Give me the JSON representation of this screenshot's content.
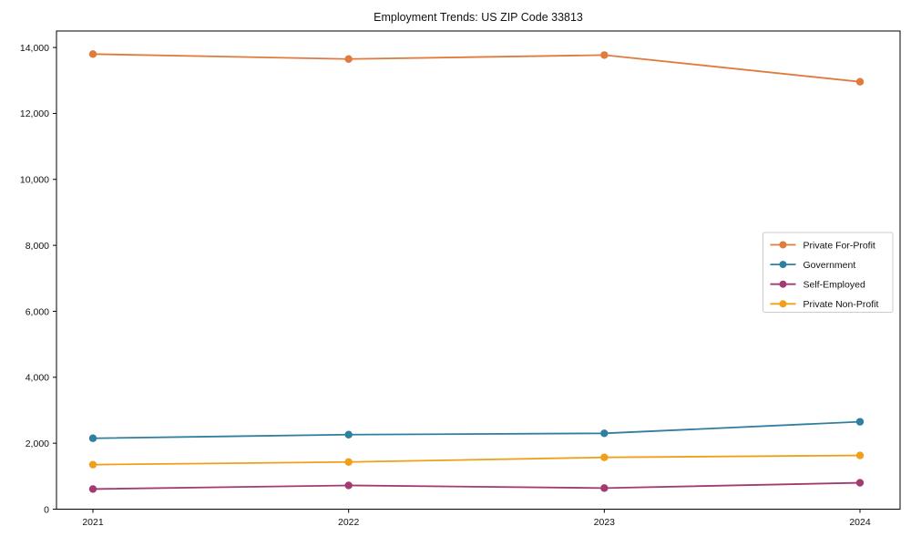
{
  "figure": {
    "title": "Employment Trends: US ZIP Code 33813"
  },
  "chart_data": {
    "type": "line",
    "title": "Employment Trends: US ZIP Code 33813",
    "x": [
      "2021",
      "2022",
      "2023",
      "2024"
    ],
    "series": [
      {
        "name": "Private For-Profit",
        "color": "#E07B3E",
        "values": [
          13800,
          13650,
          13770,
          12960
        ]
      },
      {
        "name": "Government",
        "color": "#2F7FA0",
        "values": [
          2150,
          2260,
          2300,
          2650
        ]
      },
      {
        "name": "Self-Employed",
        "color": "#A23B72",
        "values": [
          610,
          720,
          640,
          800
        ]
      },
      {
        "name": "Private Non-Profit",
        "color": "#F0A018",
        "values": [
          1350,
          1430,
          1570,
          1630
        ]
      }
    ],
    "xlabel": "",
    "ylabel": "",
    "ylim": [
      0,
      14500
    ],
    "yticks": [
      0,
      2000,
      4000,
      6000,
      8000,
      10000,
      12000,
      14000
    ],
    "ytick_labels": [
      "0",
      "2,000",
      "4,000",
      "6,000",
      "8,000",
      "10,000",
      "12,000",
      "14,000"
    ],
    "grid": false,
    "legend_position": "center right",
    "marker": "circle",
    "axis_color": "#000000",
    "legend_border_color": "#cccccc",
    "background_color": "#ffffff"
  }
}
